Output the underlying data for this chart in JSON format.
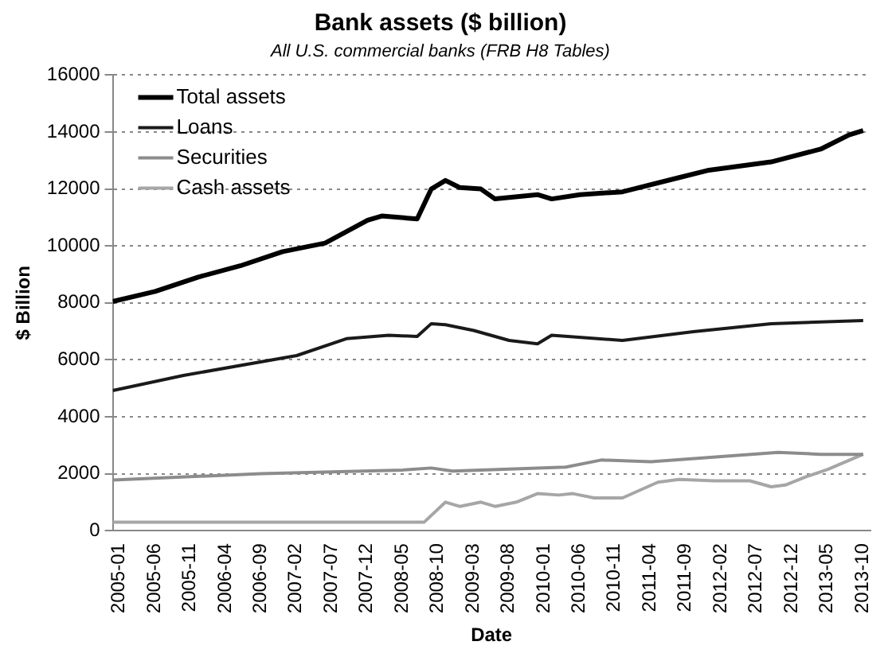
{
  "chart_data": {
    "type": "line",
    "title": "Bank assets ($ billion)",
    "subtitle": "All U.S. commercial banks (FRB H8 Tables)",
    "xlabel": "Date",
    "ylabel": "$ Billion",
    "xlim": [
      "2005-01",
      "2013-12"
    ],
    "xticks": [
      "2005-01",
      "2005-06",
      "2005-11",
      "2006-04",
      "2006-09",
      "2007-02",
      "2007-07",
      "2007-12",
      "2008-05",
      "2008-10",
      "2009-03",
      "2009-08",
      "2010-01",
      "2010-06",
      "2010-11",
      "2011-04",
      "2011-09",
      "2012-02",
      "2012-07",
      "2012-12",
      "2013-05",
      "2013-10"
    ],
    "ylim": [
      0,
      16000
    ],
    "yticks": [
      0,
      2000,
      4000,
      6000,
      8000,
      10000,
      12000,
      14000,
      16000
    ],
    "grid": "y",
    "legend": "top left",
    "marker": "none",
    "line_style": "solid",
    "series": [
      {
        "name": "Total assets",
        "color": "#000000",
        "x": [
          "2005-01",
          "2005-07",
          "2006-01",
          "2006-07",
          "2007-01",
          "2007-07",
          "2008-01",
          "2008-03",
          "2008-08",
          "2008-10",
          "2008-12",
          "2009-02",
          "2009-05",
          "2009-07",
          "2010-01",
          "2010-03",
          "2010-07",
          "2011-01",
          "2011-09",
          "2012-01",
          "2012-10",
          "2013-05",
          "2013-09",
          "2013-11"
        ],
        "values": [
          8050,
          8400,
          8900,
          9300,
          9800,
          10100,
          10900,
          11050,
          10950,
          12000,
          12300,
          12050,
          12000,
          11650,
          11800,
          11650,
          11800,
          11900,
          12400,
          12650,
          12950,
          13400,
          13900,
          14050
        ]
      },
      {
        "name": "Loans",
        "color": "#1a1a1a",
        "x": [
          "2005-01",
          "2005-11",
          "2007-03",
          "2007-10",
          "2008-04",
          "2008-08",
          "2008-10",
          "2008-12",
          "2009-04",
          "2009-09",
          "2010-01",
          "2010-03",
          "2011-01",
          "2011-11",
          "2012-10",
          "2013-11"
        ],
        "values": [
          4920,
          5450,
          6150,
          6740,
          6860,
          6820,
          7270,
          7230,
          7030,
          6680,
          6560,
          6860,
          6680,
          6990,
          7270,
          7380
        ]
      },
      {
        "name": "Securities",
        "color": "#8c8c8c",
        "x": [
          "2005-01",
          "2006-10",
          "2008-06",
          "2008-10",
          "2009-01",
          "2009-05",
          "2010-05",
          "2010-10",
          "2011-05",
          "2012-11",
          "2013-05",
          "2013-11"
        ],
        "values": [
          1780,
          2000,
          2130,
          2200,
          2090,
          2130,
          2230,
          2480,
          2420,
          2750,
          2680,
          2680
        ]
      },
      {
        "name": "Cash assets",
        "color": "#a6a6a6",
        "x": [
          "2005-01",
          "2008-09",
          "2008-12",
          "2009-02",
          "2009-05",
          "2009-07",
          "2009-10",
          "2010-01",
          "2010-04",
          "2010-06",
          "2010-09",
          "2011-01",
          "2011-06",
          "2011-09",
          "2012-02",
          "2012-07",
          "2012-10",
          "2012-12",
          "2013-03",
          "2013-06",
          "2013-11"
        ],
        "values": [
          300,
          300,
          1000,
          850,
          1000,
          850,
          1000,
          1300,
          1250,
          1300,
          1150,
          1150,
          1700,
          1800,
          1750,
          1750,
          1540,
          1600,
          1900,
          2150,
          2680
        ]
      }
    ]
  }
}
